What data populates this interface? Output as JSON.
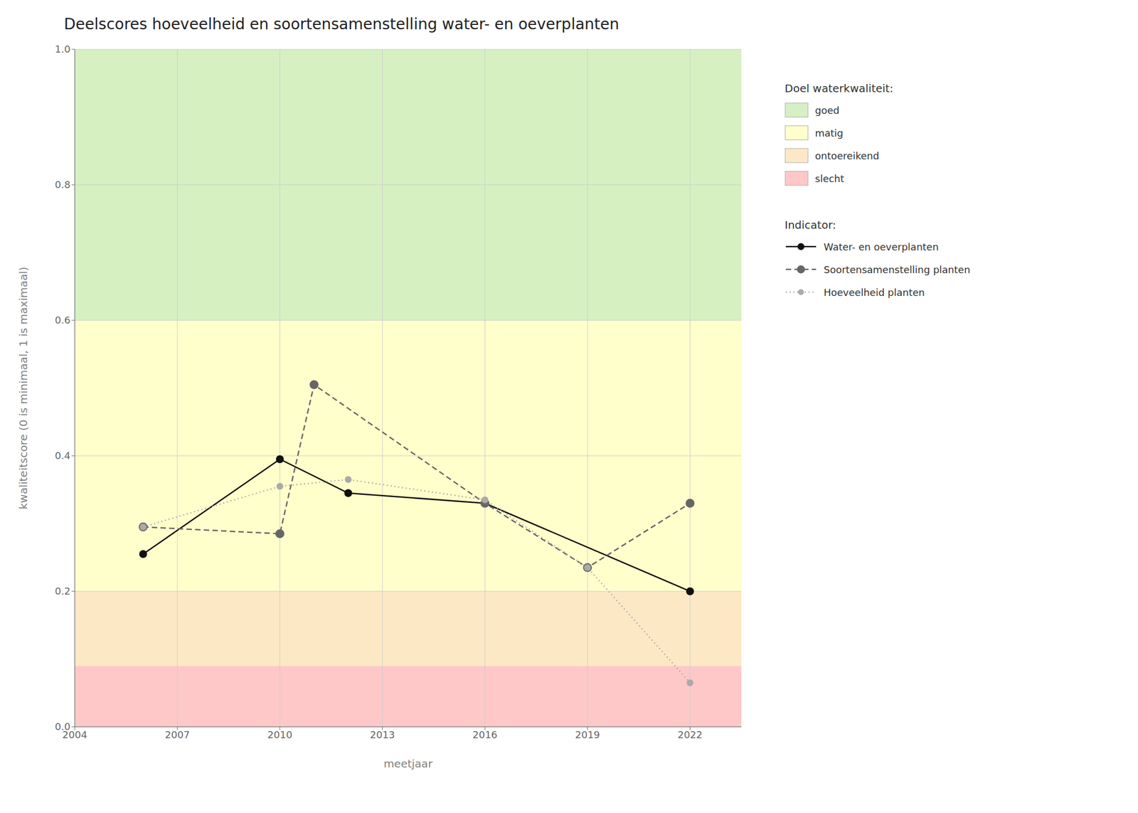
{
  "chart_data": {
    "type": "line",
    "title": "Deelscores hoeveelheid en soortensamenstelling water- en oeverplanten",
    "x_label": "meetjaar",
    "y_label": "kwaliteitscore (0 is minimaal, 1 is maximaal)",
    "xlim": [
      2004,
      2023.5
    ],
    "ylim": [
      0.0,
      1.0
    ],
    "xticks": [
      2004,
      2007,
      2010,
      2013,
      2016,
      2019,
      2022
    ],
    "yticks": [
      {
        "value": 0.0,
        "label": "0.0"
      },
      0.2,
      0.4,
      0.6,
      0.8,
      {
        "value": 1.0,
        "label": "1.0"
      }
    ],
    "grid": true,
    "legend": "right",
    "band_legend_title": "Doel waterkwaliteit:",
    "series_legend_title": "Indicator:",
    "bands": [
      {
        "label": "goed",
        "color": "#d6f0c2",
        "ymin": 0.6,
        "ymax": 1.0
      },
      {
        "label": "matig",
        "color": "#ffffcc",
        "ymin": 0.2,
        "ymax": 0.6
      },
      {
        "label": "ontoereikend",
        "color": "#fde8c5",
        "ymin": 0.09,
        "ymax": 0.2
      },
      {
        "label": "slecht",
        "color": "#ffc8c8",
        "ymin": 0.0,
        "ymax": 0.09
      }
    ],
    "series": [
      {
        "name": "Water- en oeverplanten",
        "color": "#111111",
        "line_style": "solid",
        "marker": "circle",
        "x": [
          2006,
          2010,
          2012,
          2016,
          2022
        ],
        "values": [
          0.255,
          0.395,
          0.345,
          0.33,
          0.2
        ]
      },
      {
        "name": "Soortensamenstelling planten",
        "color": "#666666",
        "line_style": "dashed",
        "marker": "circle",
        "x": [
          2006,
          2010,
          2011,
          2016,
          2019,
          2022
        ],
        "values": [
          0.295,
          0.285,
          0.505,
          0.33,
          0.235,
          0.33
        ]
      },
      {
        "name": "Hoeveelheid planten",
        "color": "#aaaaaa",
        "line_style": "dotted",
        "marker": "circle",
        "x": [
          2006,
          2010,
          2012,
          2016,
          2019,
          2022
        ],
        "values": [
          0.295,
          0.355,
          0.365,
          0.335,
          0.235,
          0.065
        ]
      }
    ]
  }
}
